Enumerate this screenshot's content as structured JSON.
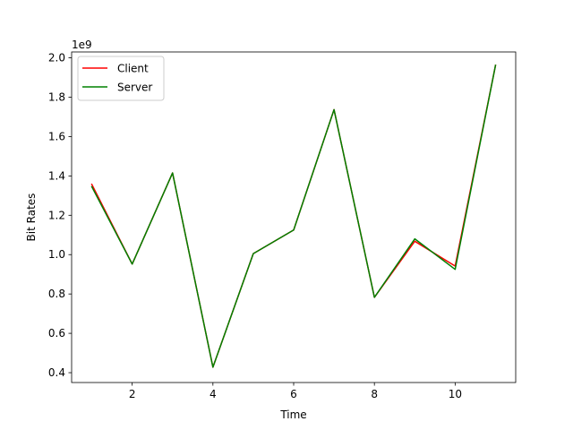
{
  "chart_data": {
    "type": "line",
    "xlabel": "Time",
    "ylabel": "Bit Rates",
    "y_offset_text": "1e9",
    "xlim": [
      0.5,
      11.5
    ],
    "ylim": [
      0.35,
      2.03
    ],
    "x_ticks": [
      2,
      4,
      6,
      8,
      10
    ],
    "x_tick_labels": [
      "2",
      "4",
      "6",
      "8",
      "10"
    ],
    "y_ticks": [
      0.4,
      0.6,
      0.8,
      1.0,
      1.2,
      1.4,
      1.6,
      1.8,
      2.0
    ],
    "y_tick_labels": [
      "0.4",
      "0.6",
      "0.8",
      "1.0",
      "1.2",
      "1.4",
      "1.6",
      "1.8",
      "2.0"
    ],
    "grid": false,
    "legend_position": "top-left",
    "x": [
      1,
      2,
      3,
      4,
      5,
      6,
      7,
      8,
      9,
      10,
      11
    ],
    "series": [
      {
        "name": "Client",
        "color": "#ff0000",
        "values": [
          1.357,
          0.952,
          1.415,
          0.428,
          1.005,
          1.125,
          1.737,
          0.783,
          1.068,
          0.942,
          1.962
        ]
      },
      {
        "name": "Server",
        "color": "#008000",
        "values": [
          1.345,
          0.952,
          1.415,
          0.428,
          1.005,
          1.125,
          1.737,
          0.783,
          1.08,
          0.925,
          1.962
        ]
      }
    ]
  }
}
